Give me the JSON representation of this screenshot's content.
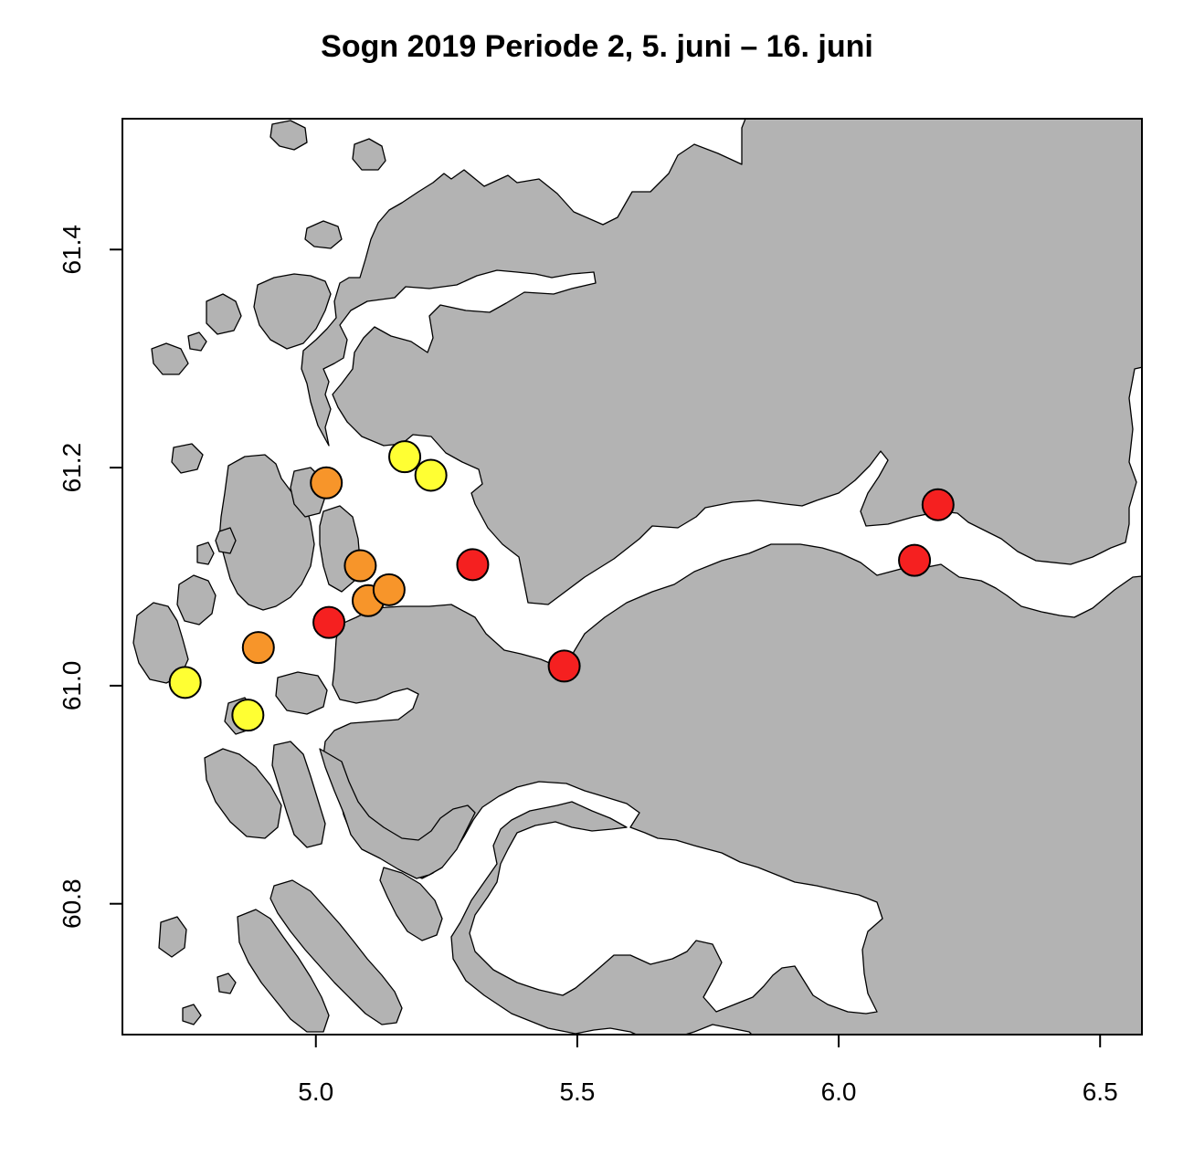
{
  "title": "Sogn 2019 Periode 2, 5. juni – 16. juni",
  "map": {
    "type": "station-map",
    "xlim": [
      4.63,
      6.58
    ],
    "ylim": [
      60.68,
      61.52
    ],
    "x_ticks": [
      {
        "value": 5.0,
        "label": "5.0"
      },
      {
        "value": 5.5,
        "label": "5.5"
      },
      {
        "value": 6.0,
        "label": "6.0"
      },
      {
        "value": 6.5,
        "label": "6.5"
      }
    ],
    "y_ticks": [
      {
        "value": 60.8,
        "label": "60.8"
      },
      {
        "value": 61.0,
        "label": "61.0"
      },
      {
        "value": 61.2,
        "label": "61.2"
      },
      {
        "value": 61.4,
        "label": "61.4"
      }
    ],
    "colors": {
      "land": "#b3b3b3",
      "sea": "#ffffff",
      "yellow": "#ffff33",
      "orange": "#f7952a",
      "red": "#f52020"
    },
    "stations": [
      {
        "lon": 4.75,
        "lat": 61.003,
        "color": "yellow"
      },
      {
        "lon": 4.87,
        "lat": 60.973,
        "color": "yellow"
      },
      {
        "lon": 5.17,
        "lat": 61.21,
        "color": "yellow"
      },
      {
        "lon": 5.22,
        "lat": 61.193,
        "color": "yellow"
      },
      {
        "lon": 4.89,
        "lat": 61.035,
        "color": "orange"
      },
      {
        "lon": 5.02,
        "lat": 61.186,
        "color": "orange"
      },
      {
        "lon": 5.085,
        "lat": 61.11,
        "color": "orange"
      },
      {
        "lon": 5.1,
        "lat": 61.078,
        "color": "orange"
      },
      {
        "lon": 5.14,
        "lat": 61.088,
        "color": "orange"
      },
      {
        "lon": 5.025,
        "lat": 61.058,
        "color": "red"
      },
      {
        "lon": 5.3,
        "lat": 61.111,
        "color": "red"
      },
      {
        "lon": 5.475,
        "lat": 61.018,
        "color": "red"
      },
      {
        "lon": 6.145,
        "lat": 61.115,
        "color": "red"
      },
      {
        "lon": 6.19,
        "lat": 61.166,
        "color": "red"
      }
    ]
  }
}
